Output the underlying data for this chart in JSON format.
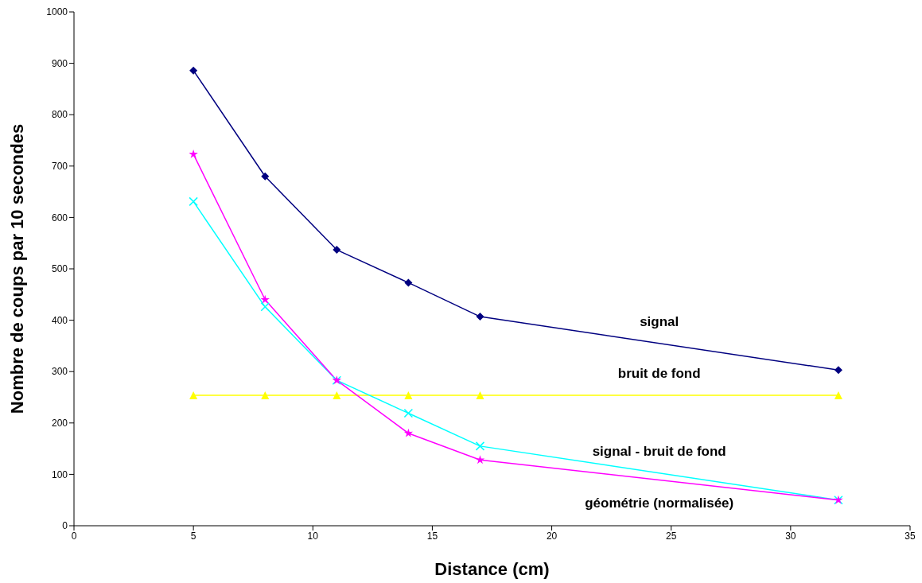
{
  "chart_data": {
    "type": "line",
    "xlabel": "Distance (cm)",
    "ylabel": "Nombre de coups par 10 secondes",
    "x": [
      5,
      8,
      11,
      14,
      17,
      32
    ],
    "series": [
      {
        "name": "signal",
        "color": "#000080",
        "marker": "diamond",
        "values": [
          886,
          680,
          537,
          473,
          407,
          303
        ]
      },
      {
        "name": "bruit de fond",
        "color": "#ffff00",
        "marker": "triangle",
        "values": [
          254,
          254,
          254,
          254,
          254,
          254
        ]
      },
      {
        "name": "signal - bruit de fond",
        "color": "#00ffff",
        "marker": "cross",
        "values": [
          631,
          426,
          283,
          219,
          155,
          50
        ]
      },
      {
        "name": "géométrie (normalisée)",
        "color": "#ff00ff",
        "marker": "star",
        "values": [
          723,
          440,
          283,
          180,
          128,
          50
        ]
      }
    ],
    "xlim": [
      0,
      35
    ],
    "xticks": [
      0,
      5,
      10,
      15,
      20,
      25,
      30,
      35
    ],
    "ylim": [
      0,
      1000
    ],
    "yticks": [
      0,
      100,
      200,
      300,
      400,
      500,
      600,
      700,
      800,
      900,
      1000
    ],
    "grid": false,
    "legend": false,
    "line_style": "solid"
  }
}
